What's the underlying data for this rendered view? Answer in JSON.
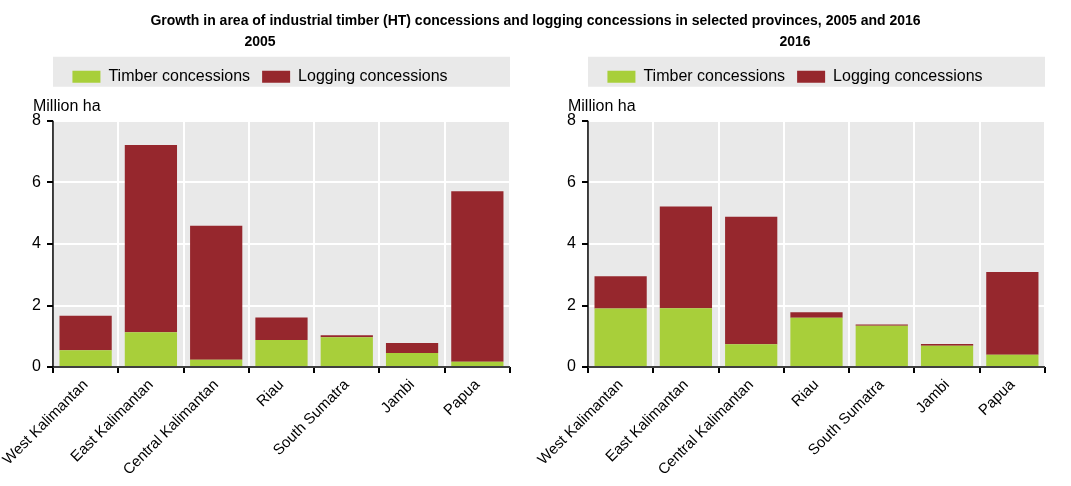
{
  "chart_data": [
    {
      "type": "bar",
      "title": "Growth in area of industrial timber (HT) concessions and logging concessions in selected provinces, 2005 and 2016",
      "subtitle": "2005",
      "ylabel": "Million ha",
      "stacked": true,
      "legend": "top",
      "grid": true,
      "categories": [
        "West Kalimantan",
        "East Kalimantan",
        "Central Kalimantan",
        "Riau",
        "South Sumatra",
        "Jambi",
        "Papua"
      ],
      "series": [
        {
          "name": "Timber concessions",
          "color": "#a8cf3a",
          "values": [
            0.55,
            1.13,
            0.24,
            0.88,
            0.97,
            0.46,
            0.17
          ]
        },
        {
          "name": "Logging concessions",
          "color": "#96272d",
          "values": [
            1.12,
            6.08,
            4.35,
            0.73,
            0.06,
            0.32,
            5.54
          ]
        }
      ],
      "ylim": [
        0,
        8
      ],
      "yticks": [
        0,
        2,
        4,
        6,
        8
      ]
    },
    {
      "type": "bar",
      "subtitle": "2016",
      "ylabel": "Million ha",
      "stacked": true,
      "legend": "top",
      "grid": true,
      "categories": [
        "West Kalimantan",
        "East Kalimantan",
        "Central Kalimantan",
        "Riau",
        "South Sumatra",
        "Jambi",
        "Papua"
      ],
      "series": [
        {
          "name": "Timber concessions",
          "color": "#a8cf3a",
          "values": [
            1.9,
            1.91,
            0.74,
            1.6,
            1.34,
            0.69,
            0.4
          ]
        },
        {
          "name": "Logging concessions",
          "color": "#96272d",
          "values": [
            1.05,
            3.31,
            4.14,
            0.18,
            0.04,
            0.06,
            2.69
          ]
        }
      ],
      "ylim": [
        0,
        8
      ],
      "yticks": [
        0,
        2,
        4,
        6,
        8
      ]
    }
  ]
}
